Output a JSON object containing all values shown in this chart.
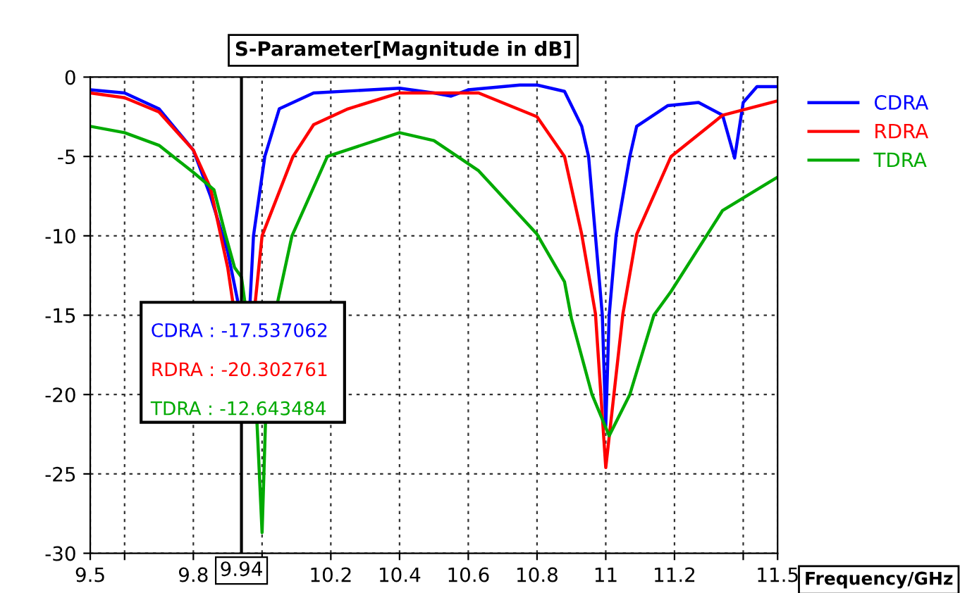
{
  "chart_data": {
    "type": "line",
    "title": "S-Parameter[Magnitude in dB]",
    "xlabel": "Frequency/GHz",
    "xlim": [
      9.5,
      11.5
    ],
    "ylim": [
      -30,
      0
    ],
    "xticks": [
      9.5,
      {
        "value": 9.6,
        "label": null
      },
      9.8,
      {
        "value": 10.0,
        "label": null
      },
      10.2,
      10.4,
      10.6,
      10.8,
      11,
      11.2,
      {
        "value": 11.4,
        "label": null
      },
      11.5
    ],
    "yticks": [
      -30,
      -25,
      -20,
      -15,
      -10,
      -5,
      0
    ],
    "grid": true,
    "legend": "top right",
    "line_style": "solid",
    "ref_lines": [
      {
        "axis": "x",
        "value": 9.94,
        "label": "9.94",
        "color": "#000000"
      }
    ],
    "annotations": [
      "CDRA : -17.537062",
      "RDRA : -20.302761",
      "TDRA : -12.643484"
    ],
    "series": [
      {
        "name": "CDRA",
        "color": "#0000ff",
        "x": [
          9.5,
          9.6,
          9.7,
          9.8,
          9.85,
          9.9,
          9.93,
          9.94,
          9.95,
          9.965,
          9.975,
          10.008,
          10.05,
          10.15,
          10.4,
          10.5,
          10.55,
          10.6,
          10.75,
          10.8,
          10.88,
          10.93,
          10.95,
          10.97,
          10.99,
          11.0,
          11.01,
          11.03,
          11.07,
          11.09,
          11.18,
          11.27,
          11.34,
          11.375,
          11.4,
          11.44,
          11.5
        ],
        "values": [
          -0.8,
          -1.0,
          -2.0,
          -4.6,
          -7.5,
          -11.0,
          -14.2,
          null,
          null,
          -14.2,
          -10.0,
          -5.0,
          -2.0,
          -1.0,
          -0.7,
          -1.0,
          -1.2,
          -0.8,
          -0.5,
          -0.5,
          -0.9,
          -3.1,
          -5.0,
          -10.0,
          -15.0,
          -22.0,
          -15.0,
          -10.0,
          -5.0,
          -3.1,
          -1.8,
          -1.6,
          -2.4,
          -5.1,
          -1.6,
          -0.6,
          -0.6
        ]
      },
      {
        "name": "RDRA",
        "color": "#ff0000",
        "x": [
          9.5,
          9.6,
          9.7,
          9.8,
          9.85,
          9.9,
          9.915,
          9.94,
          9.955,
          9.98,
          10.0,
          10.09,
          10.15,
          10.25,
          10.4,
          10.63,
          10.8,
          10.88,
          10.93,
          10.97,
          11.0,
          11.05,
          11.09,
          11.19,
          11.34,
          11.5
        ],
        "values": [
          -1.0,
          -1.3,
          -2.2,
          -4.6,
          -7.0,
          -12.0,
          -14.2,
          null,
          null,
          -14.2,
          -10.0,
          -5.0,
          -3.0,
          -2.0,
          -1.0,
          -1.0,
          -2.5,
          -5.0,
          -9.9,
          -14.9,
          -24.6,
          -14.9,
          -9.9,
          -5.0,
          -2.4,
          -1.5
        ]
      },
      {
        "name": "TDRA",
        "color": "#00aa00",
        "x": [
          9.5,
          9.6,
          9.7,
          9.8,
          9.86,
          9.893,
          9.92,
          9.94,
          9.95,
          9.985,
          9.99,
          10.0,
          10.01,
          10.045,
          10.087,
          10.19,
          10.4,
          10.5,
          10.63,
          10.8,
          10.88,
          10.9,
          10.96,
          11.01,
          11.07,
          11.14,
          11.19,
          11.34,
          11.5
        ],
        "values": [
          -3.1,
          -3.5,
          -4.3,
          -6.0,
          -7.1,
          -9.9,
          -12.0,
          -12.6,
          -14.2,
          -21.7,
          -24.0,
          -28.7,
          -21.7,
          -14.2,
          -10.0,
          -5.0,
          -3.5,
          -4.0,
          -5.9,
          -9.9,
          -12.9,
          -15.2,
          -20.0,
          -22.6,
          -20.0,
          -15.0,
          -13.5,
          -8.4,
          -6.3
        ]
      }
    ]
  }
}
